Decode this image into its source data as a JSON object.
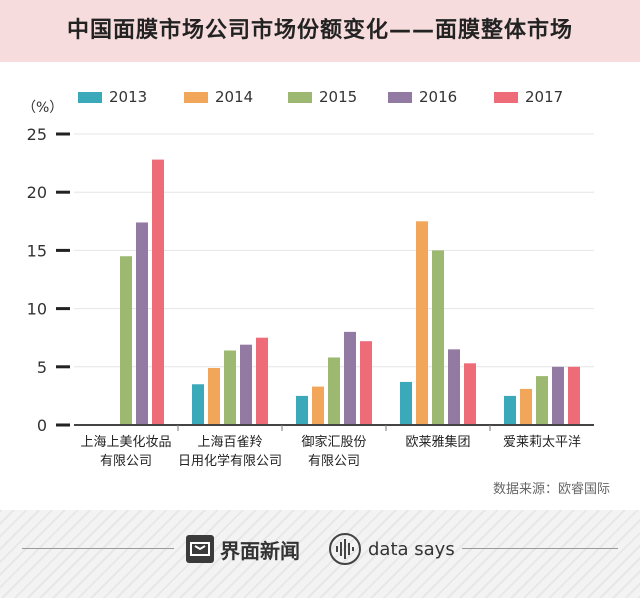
{
  "header": {
    "title": "中国面膜市场公司市场份额变化——面膜整体市场"
  },
  "chart_data": {
    "type": "bar",
    "title": "中国面膜市场公司市场份额变化——面膜整体市场",
    "ylabel": "（%）",
    "xlabel": "",
    "ylim": [
      0,
      25
    ],
    "yticks": [
      0,
      5,
      10,
      15,
      20,
      25
    ],
    "categories": [
      [
        "上海上美化妆品",
        "有限公司"
      ],
      [
        "上海百雀羚",
        "日用化学有限公司"
      ],
      [
        "御家汇股份",
        "有限公司"
      ],
      [
        "欧莱雅集团"
      ],
      [
        "爱莱莉太平洋"
      ]
    ],
    "series": [
      {
        "name": "2013",
        "color": "#3aa9b9",
        "values": [
          null,
          3.5,
          2.5,
          3.7,
          2.5
        ]
      },
      {
        "name": "2014",
        "color": "#f2a65a",
        "values": [
          null,
          4.9,
          3.3,
          17.5,
          3.1
        ]
      },
      {
        "name": "2015",
        "color": "#9cb871",
        "values": [
          14.5,
          6.4,
          5.8,
          15.0,
          4.2
        ]
      },
      {
        "name": "2016",
        "color": "#937aa3",
        "values": [
          17.4,
          6.9,
          8.0,
          6.5,
          5.0
        ]
      },
      {
        "name": "2017",
        "color": "#ee6b78",
        "values": [
          22.8,
          7.5,
          7.2,
          5.3,
          5.0
        ]
      }
    ],
    "grid": true,
    "legend": "top"
  },
  "source": "数据来源：欧睿国际",
  "footer": {
    "brand": "界面新闻",
    "datasays": "data says"
  }
}
